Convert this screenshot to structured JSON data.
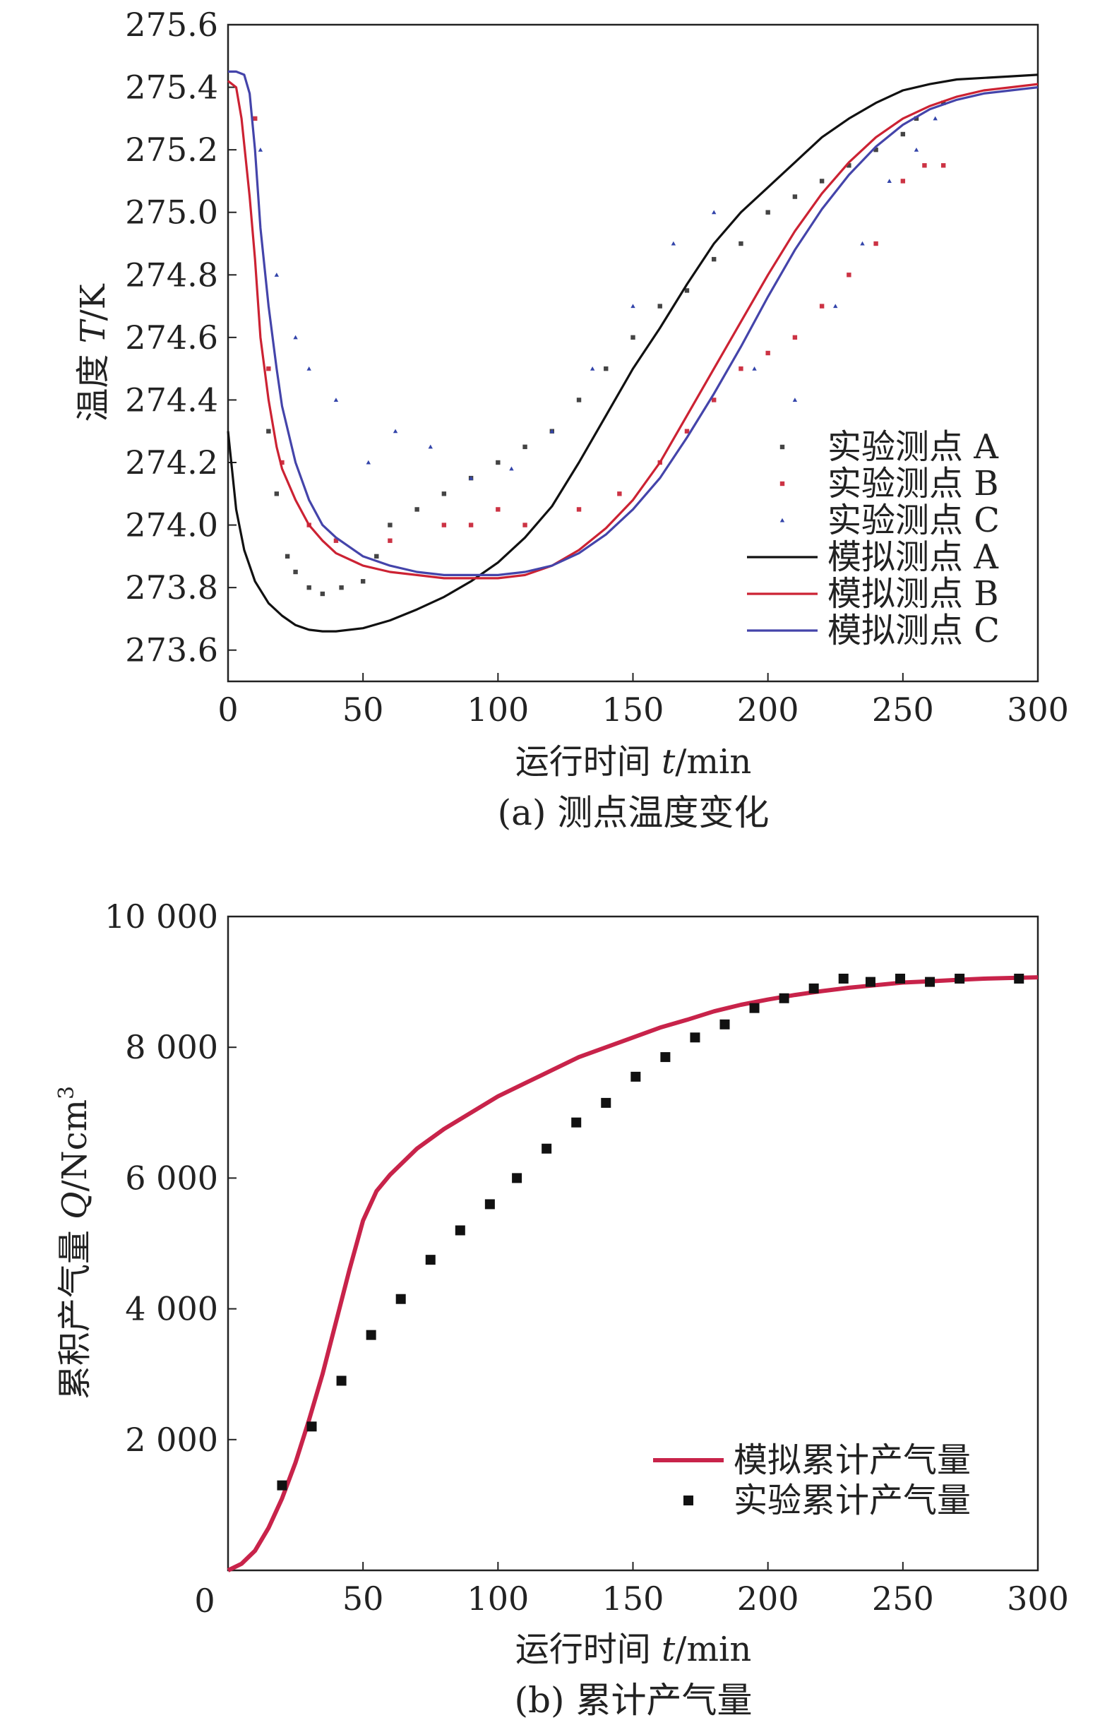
{
  "chart_data": [
    {
      "type": "line",
      "caption": "(a) 测点温度变化",
      "xlabel": {
        "text": "运行时间 ",
        "var": "t",
        "unit": "/min"
      },
      "ylabel": {
        "text": "温度 ",
        "var": "T",
        "unit": "/K"
      },
      "xlim": [
        0,
        300
      ],
      "ylim": [
        273.5,
        275.6
      ],
      "xticks": [
        0,
        50,
        100,
        150,
        200,
        250,
        300
      ],
      "xtick_labels": [
        "0",
        "50",
        "100",
        "150",
        "200",
        "250",
        "300"
      ],
      "yticks": [
        273.6,
        273.8,
        274.0,
        274.2,
        274.4,
        274.6,
        274.8,
        275.0,
        275.2,
        275.4,
        275.6
      ],
      "ytick_labels": [
        "273.6",
        "273.8",
        "274.0",
        "274.2",
        "274.4",
        "274.6",
        "274.8",
        "275.0",
        "275.2",
        "275.4",
        "275.6"
      ],
      "legend_position": "bottom-right",
      "series": [
        {
          "name": "实验测点 A",
          "kind": "scatter",
          "marker": "square",
          "color": "#444444",
          "x": [
            15,
            18,
            22,
            25,
            30,
            35,
            42,
            50,
            55,
            60,
            70,
            80,
            90,
            100,
            110,
            120,
            130,
            140,
            150,
            160,
            170,
            180,
            190,
            200,
            210,
            220,
            230,
            240,
            250,
            255,
            265
          ],
          "y": [
            274.3,
            274.1,
            273.9,
            273.85,
            273.8,
            273.78,
            273.8,
            273.82,
            273.9,
            274.0,
            274.05,
            274.1,
            274.15,
            274.2,
            274.25,
            274.3,
            274.4,
            274.5,
            274.6,
            274.7,
            274.75,
            274.85,
            274.9,
            275.0,
            275.05,
            275.1,
            275.15,
            275.2,
            275.25,
            275.3,
            275.35
          ]
        },
        {
          "name": "实验测点 B",
          "kind": "scatter",
          "marker": "square",
          "color": "#cc3344",
          "x": [
            10,
            15,
            20,
            30,
            40,
            60,
            80,
            90,
            100,
            110,
            130,
            145,
            160,
            170,
            180,
            190,
            200,
            210,
            220,
            230,
            240,
            250,
            258,
            265
          ],
          "y": [
            275.3,
            274.5,
            274.2,
            274.0,
            273.95,
            273.95,
            274.0,
            274.0,
            274.05,
            274.0,
            274.05,
            274.1,
            274.2,
            274.3,
            274.4,
            274.5,
            274.55,
            274.6,
            274.7,
            274.8,
            274.9,
            275.1,
            275.15,
            275.15
          ]
        },
        {
          "name": "实验测点 C",
          "kind": "scatter",
          "marker": "triangle",
          "color": "#3344aa",
          "x": [
            12,
            18,
            25,
            30,
            40,
            52,
            62,
            75,
            90,
            105,
            120,
            135,
            150,
            165,
            180,
            195,
            210,
            225,
            235,
            245,
            255,
            262
          ],
          "y": [
            275.2,
            274.8,
            274.6,
            274.5,
            274.4,
            274.2,
            274.3,
            274.25,
            274.15,
            274.18,
            274.3,
            274.5,
            274.7,
            274.9,
            275.0,
            274.5,
            274.4,
            274.7,
            274.9,
            275.1,
            275.2,
            275.3
          ]
        },
        {
          "name": "模拟测点 A",
          "kind": "line",
          "color": "#111111",
          "x": [
            0,
            3,
            6,
            10,
            15,
            20,
            25,
            30,
            35,
            40,
            50,
            60,
            70,
            80,
            90,
            100,
            110,
            120,
            130,
            140,
            150,
            160,
            170,
            180,
            190,
            200,
            210,
            220,
            230,
            240,
            250,
            260,
            270,
            280,
            290,
            300
          ],
          "y": [
            274.3,
            274.05,
            273.92,
            273.82,
            273.75,
            273.71,
            273.68,
            273.665,
            273.66,
            273.66,
            273.67,
            273.695,
            273.73,
            273.77,
            273.82,
            273.88,
            273.96,
            274.06,
            274.2,
            274.35,
            274.5,
            274.63,
            274.77,
            274.9,
            275.0,
            275.08,
            275.16,
            275.24,
            275.3,
            275.35,
            275.39,
            275.41,
            275.425,
            275.43,
            275.435,
            275.44
          ]
        },
        {
          "name": "模拟测点 B",
          "kind": "line",
          "color": "#cc2233",
          "x": [
            0,
            3,
            5,
            8,
            10,
            12,
            15,
            18,
            20,
            25,
            30,
            35,
            40,
            50,
            60,
            70,
            80,
            90,
            100,
            110,
            120,
            130,
            140,
            150,
            160,
            170,
            180,
            190,
            200,
            210,
            220,
            230,
            240,
            250,
            260,
            270,
            280,
            290,
            300
          ],
          "y": [
            275.42,
            275.4,
            275.3,
            275.05,
            274.85,
            274.6,
            274.4,
            274.25,
            274.18,
            274.08,
            274.0,
            273.95,
            273.91,
            273.87,
            273.85,
            273.84,
            273.83,
            273.83,
            273.83,
            273.84,
            273.87,
            273.92,
            273.99,
            274.08,
            274.2,
            274.35,
            274.5,
            274.65,
            274.8,
            274.94,
            275.06,
            275.16,
            275.24,
            275.3,
            275.34,
            275.37,
            275.39,
            275.4,
            275.41
          ]
        },
        {
          "name": "模拟测点 C",
          "kind": "line",
          "color": "#4444aa",
          "x": [
            0,
            3,
            6,
            8,
            10,
            12,
            15,
            18,
            20,
            25,
            30,
            35,
            40,
            50,
            60,
            70,
            80,
            90,
            100,
            110,
            120,
            130,
            140,
            150,
            160,
            170,
            180,
            190,
            200,
            210,
            220,
            230,
            240,
            250,
            260,
            270,
            280,
            290,
            300
          ],
          "y": [
            275.45,
            275.45,
            275.44,
            275.38,
            275.2,
            274.95,
            274.7,
            274.5,
            274.38,
            274.2,
            274.08,
            274.0,
            273.96,
            273.9,
            273.87,
            273.85,
            273.84,
            273.84,
            273.84,
            273.85,
            273.87,
            273.91,
            273.97,
            274.05,
            274.15,
            274.28,
            274.42,
            274.57,
            274.73,
            274.88,
            275.01,
            275.12,
            275.21,
            275.28,
            275.33,
            275.36,
            275.38,
            275.39,
            275.4
          ]
        }
      ]
    },
    {
      "type": "line",
      "caption": "(b) 累计产气量",
      "xlabel": {
        "text": "运行时间 ",
        "var": "t",
        "unit": "/min"
      },
      "ylabel": {
        "text": "累积产气量 ",
        "var": "Q",
        "unit": "/Ncm",
        "sup": "3"
      },
      "xlim": [
        0,
        300
      ],
      "ylim": [
        0,
        10000
      ],
      "xticks": [
        0,
        50,
        100,
        150,
        200,
        250,
        300
      ],
      "xtick_labels": [
        "0",
        "50",
        "100",
        "150",
        "200",
        "250",
        "300"
      ],
      "yticks": [
        2000,
        4000,
        6000,
        8000,
        10000
      ],
      "ytick_labels": [
        "2 000",
        "4 000",
        "6 000",
        "8 000",
        "10 000"
      ],
      "legend_position": "bottom-right",
      "series": [
        {
          "name": "模拟累计产气量",
          "kind": "line",
          "color": "#c8234a",
          "x": [
            0,
            5,
            10,
            15,
            20,
            25,
            30,
            35,
            40,
            45,
            50,
            55,
            60,
            70,
            80,
            90,
            100,
            110,
            120,
            130,
            140,
            150,
            160,
            170,
            180,
            190,
            200,
            210,
            220,
            230,
            240,
            250,
            260,
            270,
            280,
            290,
            300
          ],
          "y": [
            0,
            100,
            300,
            650,
            1100,
            1650,
            2300,
            3000,
            3800,
            4600,
            5350,
            5800,
            6050,
            6450,
            6750,
            7000,
            7250,
            7450,
            7650,
            7850,
            8000,
            8150,
            8300,
            8420,
            8550,
            8650,
            8730,
            8800,
            8860,
            8910,
            8950,
            8990,
            9010,
            9030,
            9050,
            9060,
            9070
          ]
        },
        {
          "name": "实验累计产气量",
          "kind": "scatter",
          "marker": "square",
          "color": "#111111",
          "x": [
            20,
            31,
            42,
            53,
            64,
            75,
            86,
            97,
            107,
            118,
            129,
            140,
            151,
            162,
            173,
            184,
            195,
            206,
            217,
            228,
            238,
            249,
            260,
            271,
            293
          ],
          "y": [
            1300,
            2200,
            2900,
            3600,
            4150,
            4750,
            5200,
            5600,
            6000,
            6450,
            6850,
            7150,
            7550,
            7850,
            8150,
            8350,
            8600,
            8750,
            8900,
            9050,
            9000,
            9050,
            9000,
            9050,
            9050
          ]
        }
      ]
    }
  ]
}
